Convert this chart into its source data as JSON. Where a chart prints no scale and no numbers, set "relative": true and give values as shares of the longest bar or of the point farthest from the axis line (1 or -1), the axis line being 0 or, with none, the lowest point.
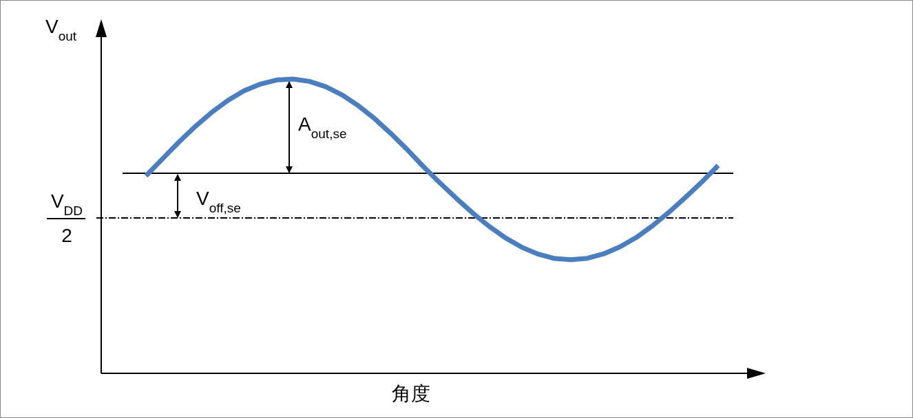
{
  "chart_data": {
    "type": "line",
    "relative": true,
    "ylabel": "V$_{out}$",
    "xlabel": "角度",
    "categories": [
      null,
      null,
      null,
      null,
      null,
      null,
      null,
      null,
      null,
      null,
      null,
      null,
      null,
      null,
      null,
      null,
      null,
      null,
      null,
      null,
      null,
      null,
      null,
      null,
      null,
      null,
      null,
      null,
      null,
      null,
      null,
      null,
      null,
      null,
      null,
      null
    ],
    "series": [
      {
        "color": "#4a7ebf",
        "values": [
          0.671,
          0.728,
          0.785,
          0.838,
          0.886,
          0.927,
          0.96,
          0.983,
          0.997,
          1.0,
          0.992,
          0.974,
          0.946,
          0.909,
          0.865,
          0.814,
          0.759,
          0.701,
          0.646,
          0.594,
          0.544,
          0.499,
          0.46,
          0.428,
          0.405,
          0.39,
          0.386,
          0.391,
          0.406,
          0.43,
          0.462,
          0.502,
          0.548,
          0.598,
          0.65,
          0.706
        ]
      }
    ],
    "ref_lines": [
      {
        "axis": "y",
        "value": 0.68,
        "label": "A$_{out,se}$",
        "line_style": "solid",
        "color": "#000000"
      },
      {
        "axis": "y",
        "value": 0.528,
        "label": "V$_{DD}$ 2",
        "line_style": "dashed",
        "color": "#000000"
      }
    ],
    "annotations": [
      "V$_{off,se}$"
    ]
  }
}
